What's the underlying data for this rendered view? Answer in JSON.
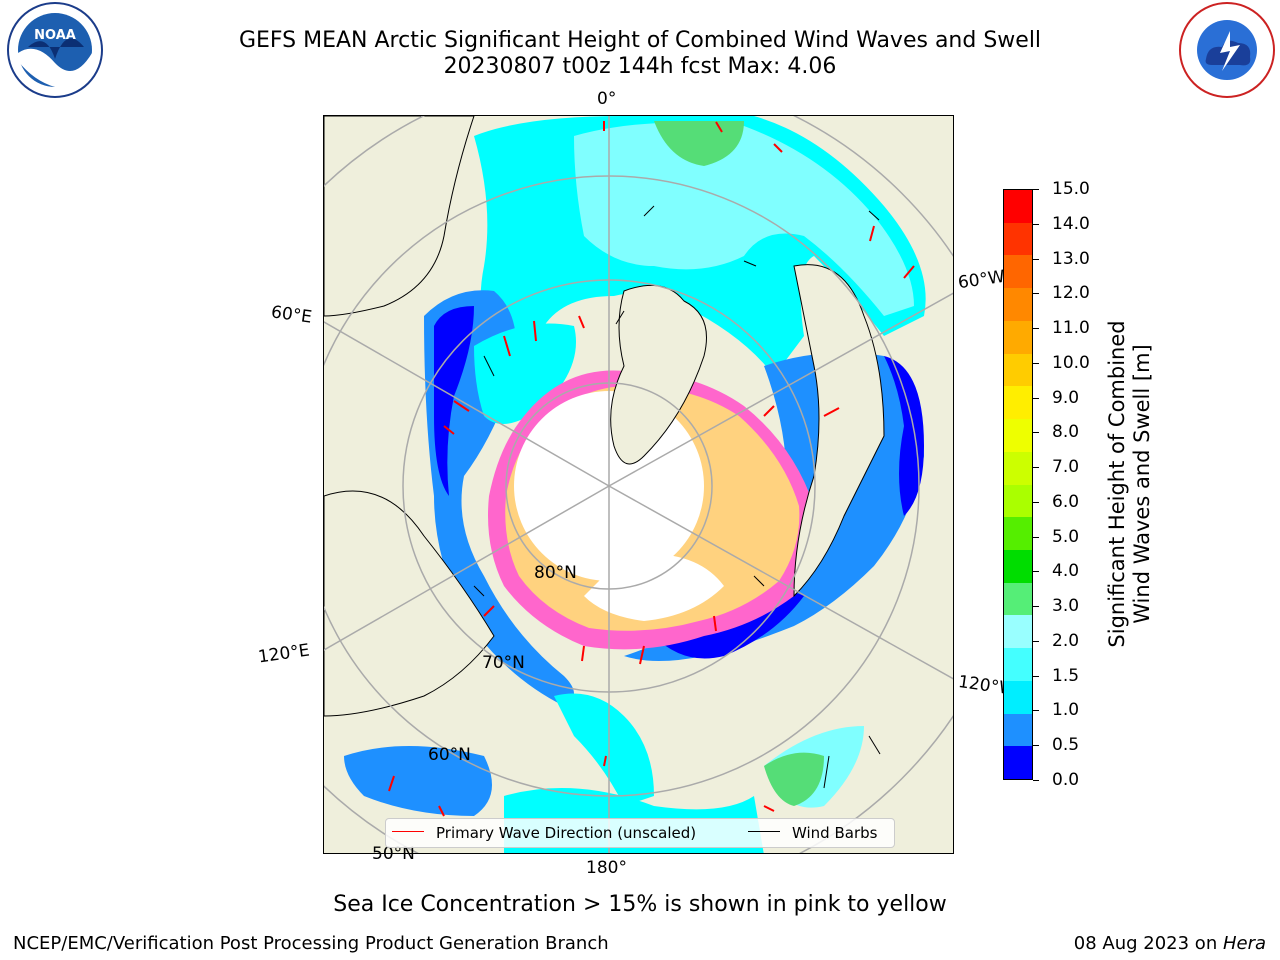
{
  "title": {
    "line1": "GEFS MEAN Arctic Significant Height of Combined Wind Waves and Swell",
    "line2": "20230807 t00z 144h fcst   Max: 4.06"
  },
  "map": {
    "projection": "north-polar-stereographic",
    "longitude_labels": [
      "0°",
      "60°E",
      "60°W",
      "120°E",
      "120°W",
      "180°"
    ],
    "latitude_labels": [
      "80°N",
      "70°N",
      "60°N",
      "50°N"
    ],
    "colors": {
      "land": "#efefdc",
      "ocean_low": "#0000ff",
      "ocean_mid": "#1e90ff",
      "ocean_cyan": "#00ffff",
      "ocean_light": "#80ffff",
      "sea_ice_pink": "#ff66cc",
      "sea_ice_yellow": "#ffd27f",
      "ocean_green": "#55dd77"
    }
  },
  "legend": {
    "wave_direction": "Primary Wave Direction (unscaled)",
    "wind_barbs": "Wind Barbs"
  },
  "colorbar": {
    "label_line1": "Significant Height of Combined",
    "label_line2": "Wind Waves and Swell [m]",
    "ticks": [
      "15.0",
      "14.0",
      "13.0",
      "12.0",
      "11.0",
      "10.0",
      "9.0",
      "8.0",
      "7.0",
      "6.0",
      "5.0",
      "4.0",
      "3.0",
      "2.0",
      "1.5",
      "1.0",
      "0.5",
      "0.0"
    ],
    "bands_top_to_bottom": [
      "#ff0000",
      "#ff3300",
      "#ff6600",
      "#ff8800",
      "#ffaa00",
      "#ffcc00",
      "#ffee00",
      "#eeff00",
      "#ccff00",
      "#aaff00",
      "#55ee00",
      "#00dd00",
      "#55ee77",
      "#99ffff",
      "#44ffff",
      "#00eeff",
      "#1e90ff",
      "#0000ff"
    ]
  },
  "note": "Sea Ice Concentration > 15% is shown in pink to yellow",
  "footer": {
    "left": "NCEP/EMC/Verification Post Processing Product Generation Branch",
    "right_date": "08 Aug 2023 on ",
    "right_host": "Hera"
  },
  "logos": {
    "left": "NOAA",
    "right": "NATIONAL WEATHER SERVICE"
  }
}
